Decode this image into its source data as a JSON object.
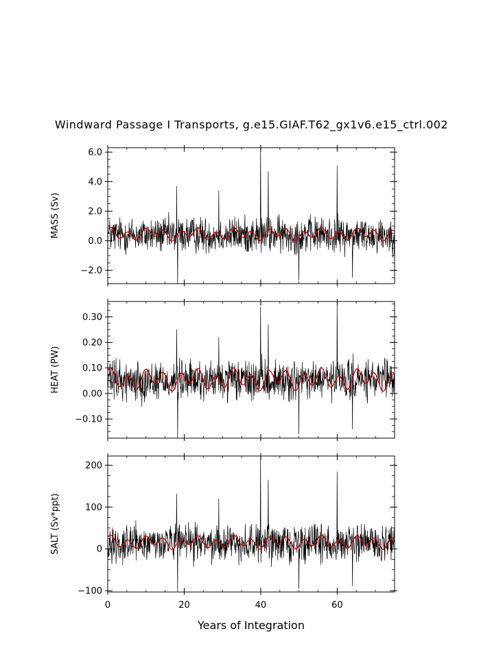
{
  "title": "Windward Passage I Transports, g.e15.GIAF.T62_gx1v6.e15_ctrl.002",
  "chart_data": {
    "type": "line",
    "title": "Windward Passage I Transports, g.e15.GIAF.T62_gx1v6.e15_ctrl.002",
    "xlabel": "Years of Integration",
    "xlim": [
      0,
      75
    ],
    "xticks": [
      0,
      20,
      40,
      60
    ],
    "grid": false,
    "panels": [
      {
        "ylabel": "MASS (Sv)",
        "ylim": [
          -2.9,
          6.3
        ],
        "yticks": [
          6.0,
          4.0,
          2.0,
          0.0,
          -2.0
        ],
        "yticklabels": [
          "6.0",
          "4.0",
          "2.0",
          "0.0",
          "−2.0"
        ],
        "mean": 0.4,
        "noise": 0.85,
        "smooth_amplitude": 0.3,
        "smooth_offset": 0.45,
        "spikes": [
          [
            40.0,
            6.3
          ],
          [
            60.0,
            5.1
          ],
          [
            42.0,
            4.7
          ],
          [
            18.0,
            3.7
          ],
          [
            18.3,
            -2.9
          ],
          [
            29.0,
            3.4
          ],
          [
            50.0,
            -2.7
          ],
          [
            64.0,
            -2.5
          ]
        ],
        "series": [
          {
            "name": "monthly transport",
            "color": "#000000"
          },
          {
            "name": "smoothed",
            "color": "#cc0000"
          }
        ]
      },
      {
        "ylabel": "HEAT (PW)",
        "ylim": [
          -0.175,
          0.36
        ],
        "yticks": [
          0.3,
          0.2,
          0.1,
          0.0,
          -0.1
        ],
        "yticklabels": [
          "0.30",
          "0.20",
          "0.10",
          "0.00",
          "−0.10"
        ],
        "mean": 0.05,
        "noise": 0.055,
        "smooth_amplitude": 0.03,
        "smooth_offset": 0.055,
        "spikes": [
          [
            40.0,
            0.34
          ],
          [
            60.0,
            0.36
          ],
          [
            42.0,
            0.27
          ],
          [
            18.0,
            0.25
          ],
          [
            18.3,
            -0.175
          ],
          [
            29.0,
            0.22
          ],
          [
            50.0,
            -0.16
          ],
          [
            64.0,
            -0.14
          ]
        ],
        "series": [
          {
            "name": "monthly transport",
            "color": "#000000"
          },
          {
            "name": "smoothed",
            "color": "#cc0000"
          }
        ]
      },
      {
        "ylabel": "SALT (Sv*ppt)",
        "ylim": [
          -103,
          222
        ],
        "yticks": [
          200,
          100,
          0,
          -100
        ],
        "yticklabels": [
          "200",
          "100",
          "0",
          "−100"
        ],
        "mean": 14,
        "noise": 30,
        "smooth_amplitude": 11,
        "smooth_offset": 16,
        "spikes": [
          [
            40.0,
            222
          ],
          [
            60.0,
            185
          ],
          [
            42.0,
            165
          ],
          [
            18.0,
            132
          ],
          [
            18.3,
            -103
          ],
          [
            29.0,
            120
          ],
          [
            50.0,
            -95
          ],
          [
            64.0,
            -88
          ]
        ],
        "series": [
          {
            "name": "monthly transport",
            "color": "#000000"
          },
          {
            "name": "smoothed",
            "color": "#cc0000"
          }
        ]
      }
    ]
  }
}
